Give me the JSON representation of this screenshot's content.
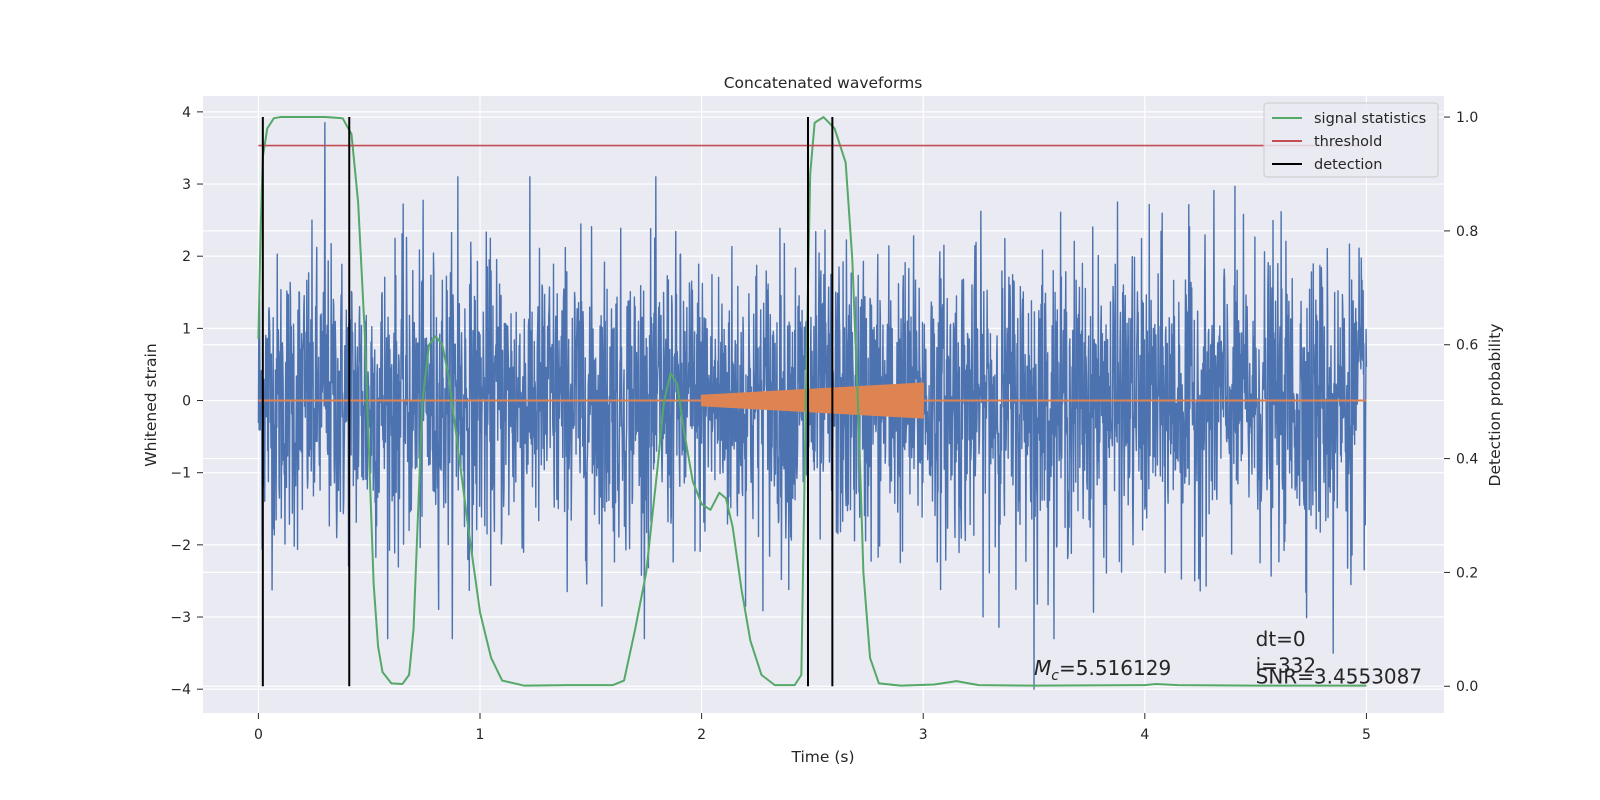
{
  "chart_data": {
    "type": "line",
    "title": "Concatenated waveforms",
    "xlabel": "Time (s)",
    "ylabel": "Whitened strain",
    "y2label": "Detection probability",
    "xlim": [
      -0.25,
      5.35
    ],
    "ylim": [
      -4.33,
      4.22
    ],
    "y2lim": [
      -0.047,
      1.037
    ],
    "xticks": [
      0,
      1,
      2,
      3,
      4,
      5
    ],
    "xtick_labels": [
      "0",
      "1",
      "2",
      "3",
      "4",
      "5"
    ],
    "yticks": [
      -4,
      -3,
      -2,
      -1,
      0,
      1,
      2,
      3,
      4
    ],
    "ytick_labels": [
      "−4",
      "−3",
      "−2",
      "−1",
      "0",
      "1",
      "2",
      "3",
      "4"
    ],
    "y2ticks": [
      0.0,
      0.2,
      0.4,
      0.6,
      0.8,
      1.0
    ],
    "y2tick_labels": [
      "0.0",
      "0.2",
      "0.4",
      "0.6",
      "0.8",
      "1.0"
    ],
    "grid": true,
    "legend_position": "top-right",
    "series": [
      {
        "name": "",
        "axis": "left",
        "color": "#4c72b0",
        "kind": "whitened_strain_noise",
        "x_range": [
          0,
          5
        ],
        "typical_amplitude": 1.0,
        "peak_values": [
          {
            "x": 0.3,
            "y": 3.85
          },
          {
            "x": 0.9,
            "y": 3.1
          },
          {
            "x": 3.5,
            "y": -4.0
          },
          {
            "x": 4.85,
            "y": -3.5
          }
        ]
      },
      {
        "name": "",
        "axis": "left",
        "color": "#dd8452",
        "kind": "chirp",
        "flat": [
          [
            0,
            0
          ],
          [
            5,
            0
          ]
        ],
        "chirp_start": 2.0,
        "chirp_end": 3.0,
        "amplitude_start": 0.08,
        "amplitude_end": 0.25
      },
      {
        "name": "signal statistics",
        "axis": "right",
        "color": "#55a868",
        "points": [
          [
            0.0,
            0.61
          ],
          [
            0.01,
            0.8
          ],
          [
            0.02,
            0.93
          ],
          [
            0.04,
            0.98
          ],
          [
            0.07,
            0.998
          ],
          [
            0.1,
            1.0
          ],
          [
            0.3,
            1.0
          ],
          [
            0.38,
            0.998
          ],
          [
            0.42,
            0.97
          ],
          [
            0.45,
            0.85
          ],
          [
            0.48,
            0.62
          ],
          [
            0.5,
            0.4
          ],
          [
            0.52,
            0.18
          ],
          [
            0.54,
            0.07
          ],
          [
            0.56,
            0.025
          ],
          [
            0.6,
            0.005
          ],
          [
            0.65,
            0.004
          ],
          [
            0.68,
            0.02
          ],
          [
            0.7,
            0.1
          ],
          [
            0.72,
            0.3
          ],
          [
            0.74,
            0.5
          ],
          [
            0.77,
            0.6
          ],
          [
            0.8,
            0.615
          ],
          [
            0.83,
            0.6
          ],
          [
            0.86,
            0.54
          ],
          [
            0.9,
            0.42
          ],
          [
            0.95,
            0.27
          ],
          [
            1.0,
            0.13
          ],
          [
            1.05,
            0.05
          ],
          [
            1.1,
            0.01
          ],
          [
            1.2,
            0.001
          ],
          [
            1.4,
            0.002
          ],
          [
            1.6,
            0.002
          ],
          [
            1.65,
            0.01
          ],
          [
            1.7,
            0.1
          ],
          [
            1.75,
            0.2
          ],
          [
            1.8,
            0.38
          ],
          [
            1.83,
            0.5
          ],
          [
            1.86,
            0.55
          ],
          [
            1.89,
            0.53
          ],
          [
            1.92,
            0.45
          ],
          [
            1.96,
            0.36
          ],
          [
            2.0,
            0.32
          ],
          [
            2.04,
            0.31
          ],
          [
            2.08,
            0.34
          ],
          [
            2.11,
            0.33
          ],
          [
            2.14,
            0.28
          ],
          [
            2.18,
            0.17
          ],
          [
            2.22,
            0.08
          ],
          [
            2.27,
            0.02
          ],
          [
            2.33,
            0.002
          ],
          [
            2.42,
            0.002
          ],
          [
            2.45,
            0.02
          ],
          [
            2.47,
            0.5
          ],
          [
            2.49,
            0.9
          ],
          [
            2.51,
            0.99
          ],
          [
            2.55,
            1.0
          ],
          [
            2.6,
            0.98
          ],
          [
            2.65,
            0.92
          ],
          [
            2.68,
            0.75
          ],
          [
            2.71,
            0.45
          ],
          [
            2.73,
            0.2
          ],
          [
            2.76,
            0.05
          ],
          [
            2.8,
            0.005
          ],
          [
            2.9,
            0.001
          ],
          [
            3.05,
            0.003
          ],
          [
            3.15,
            0.009
          ],
          [
            3.25,
            0.002
          ],
          [
            3.5,
            0.001
          ],
          [
            4.0,
            0.002
          ],
          [
            4.05,
            0.004
          ],
          [
            4.15,
            0.002
          ],
          [
            4.5,
            0.001
          ],
          [
            5.0,
            0.001
          ]
        ]
      },
      {
        "name": "threshold",
        "axis": "right",
        "color": "#c44e52",
        "points": [
          [
            0.0,
            0.95
          ],
          [
            5.0,
            0.95
          ]
        ]
      },
      {
        "name": "detection",
        "axis": "right",
        "color": "#000000",
        "vlines": [
          0.02,
          0.41,
          2.48,
          2.59
        ],
        "vline_range": [
          0,
          1
        ]
      }
    ],
    "annotations": [
      {
        "prefix": "M",
        "sub": "c",
        "text": "=5.516129",
        "x": 3.5,
        "y": -3.8
      },
      {
        "text": "dt=0",
        "x": 4.5,
        "y": -3.4
      },
      {
        "text": "i=332",
        "x": 4.5,
        "y": -3.77
      },
      {
        "text": "SNR=3.4553087",
        "x": 4.5,
        "y": -3.92
      }
    ]
  }
}
